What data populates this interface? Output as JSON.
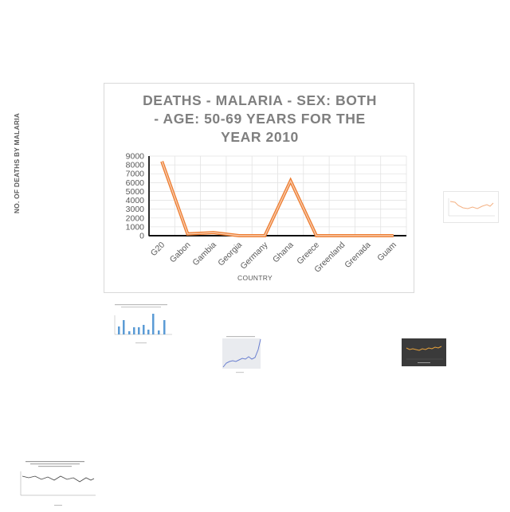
{
  "chart_data": {
    "type": "line",
    "title_lines": [
      "DEATHS - MALARIA - SEX: BOTH",
      "- AGE: 50-69 YEARS FOR THE",
      "YEAR 2010"
    ],
    "xlabel": "COUNTRY",
    "ylabel": "NO. OF DEATHS BY MALARIA",
    "categories": [
      "G20",
      "Gabon",
      "Gambia",
      "Georgia",
      "Germany",
      "Ghana",
      "Greece",
      "Greenland",
      "Grenada",
      "Guam"
    ],
    "values": [
      8400,
      200,
      350,
      0,
      0,
      6200,
      0,
      0,
      0,
      0
    ],
    "ylim": [
      0,
      9000
    ],
    "yticks": [
      0,
      1000,
      2000,
      3000,
      4000,
      5000,
      6000,
      7000,
      8000,
      9000
    ],
    "grid": true,
    "line_color": "#ed7d31",
    "line_highlight": "#f8cbad"
  },
  "thumbnails": [
    {
      "id": "thumb-line-orange",
      "title": "Share of population with fishing production..."
    },
    {
      "id": "thumb-bar-blue",
      "title": "Deaths - malaria ages 70+ by country 2010"
    },
    {
      "id": "thumb-area-blue",
      "title": "Global CO2 emissions 1990-2020"
    },
    {
      "id": "thumb-dark-line",
      "title": ""
    },
    {
      "id": "thumb-air-quality",
      "title": "Air quality Measures on the national environmental health tracking network in 2010"
    }
  ]
}
